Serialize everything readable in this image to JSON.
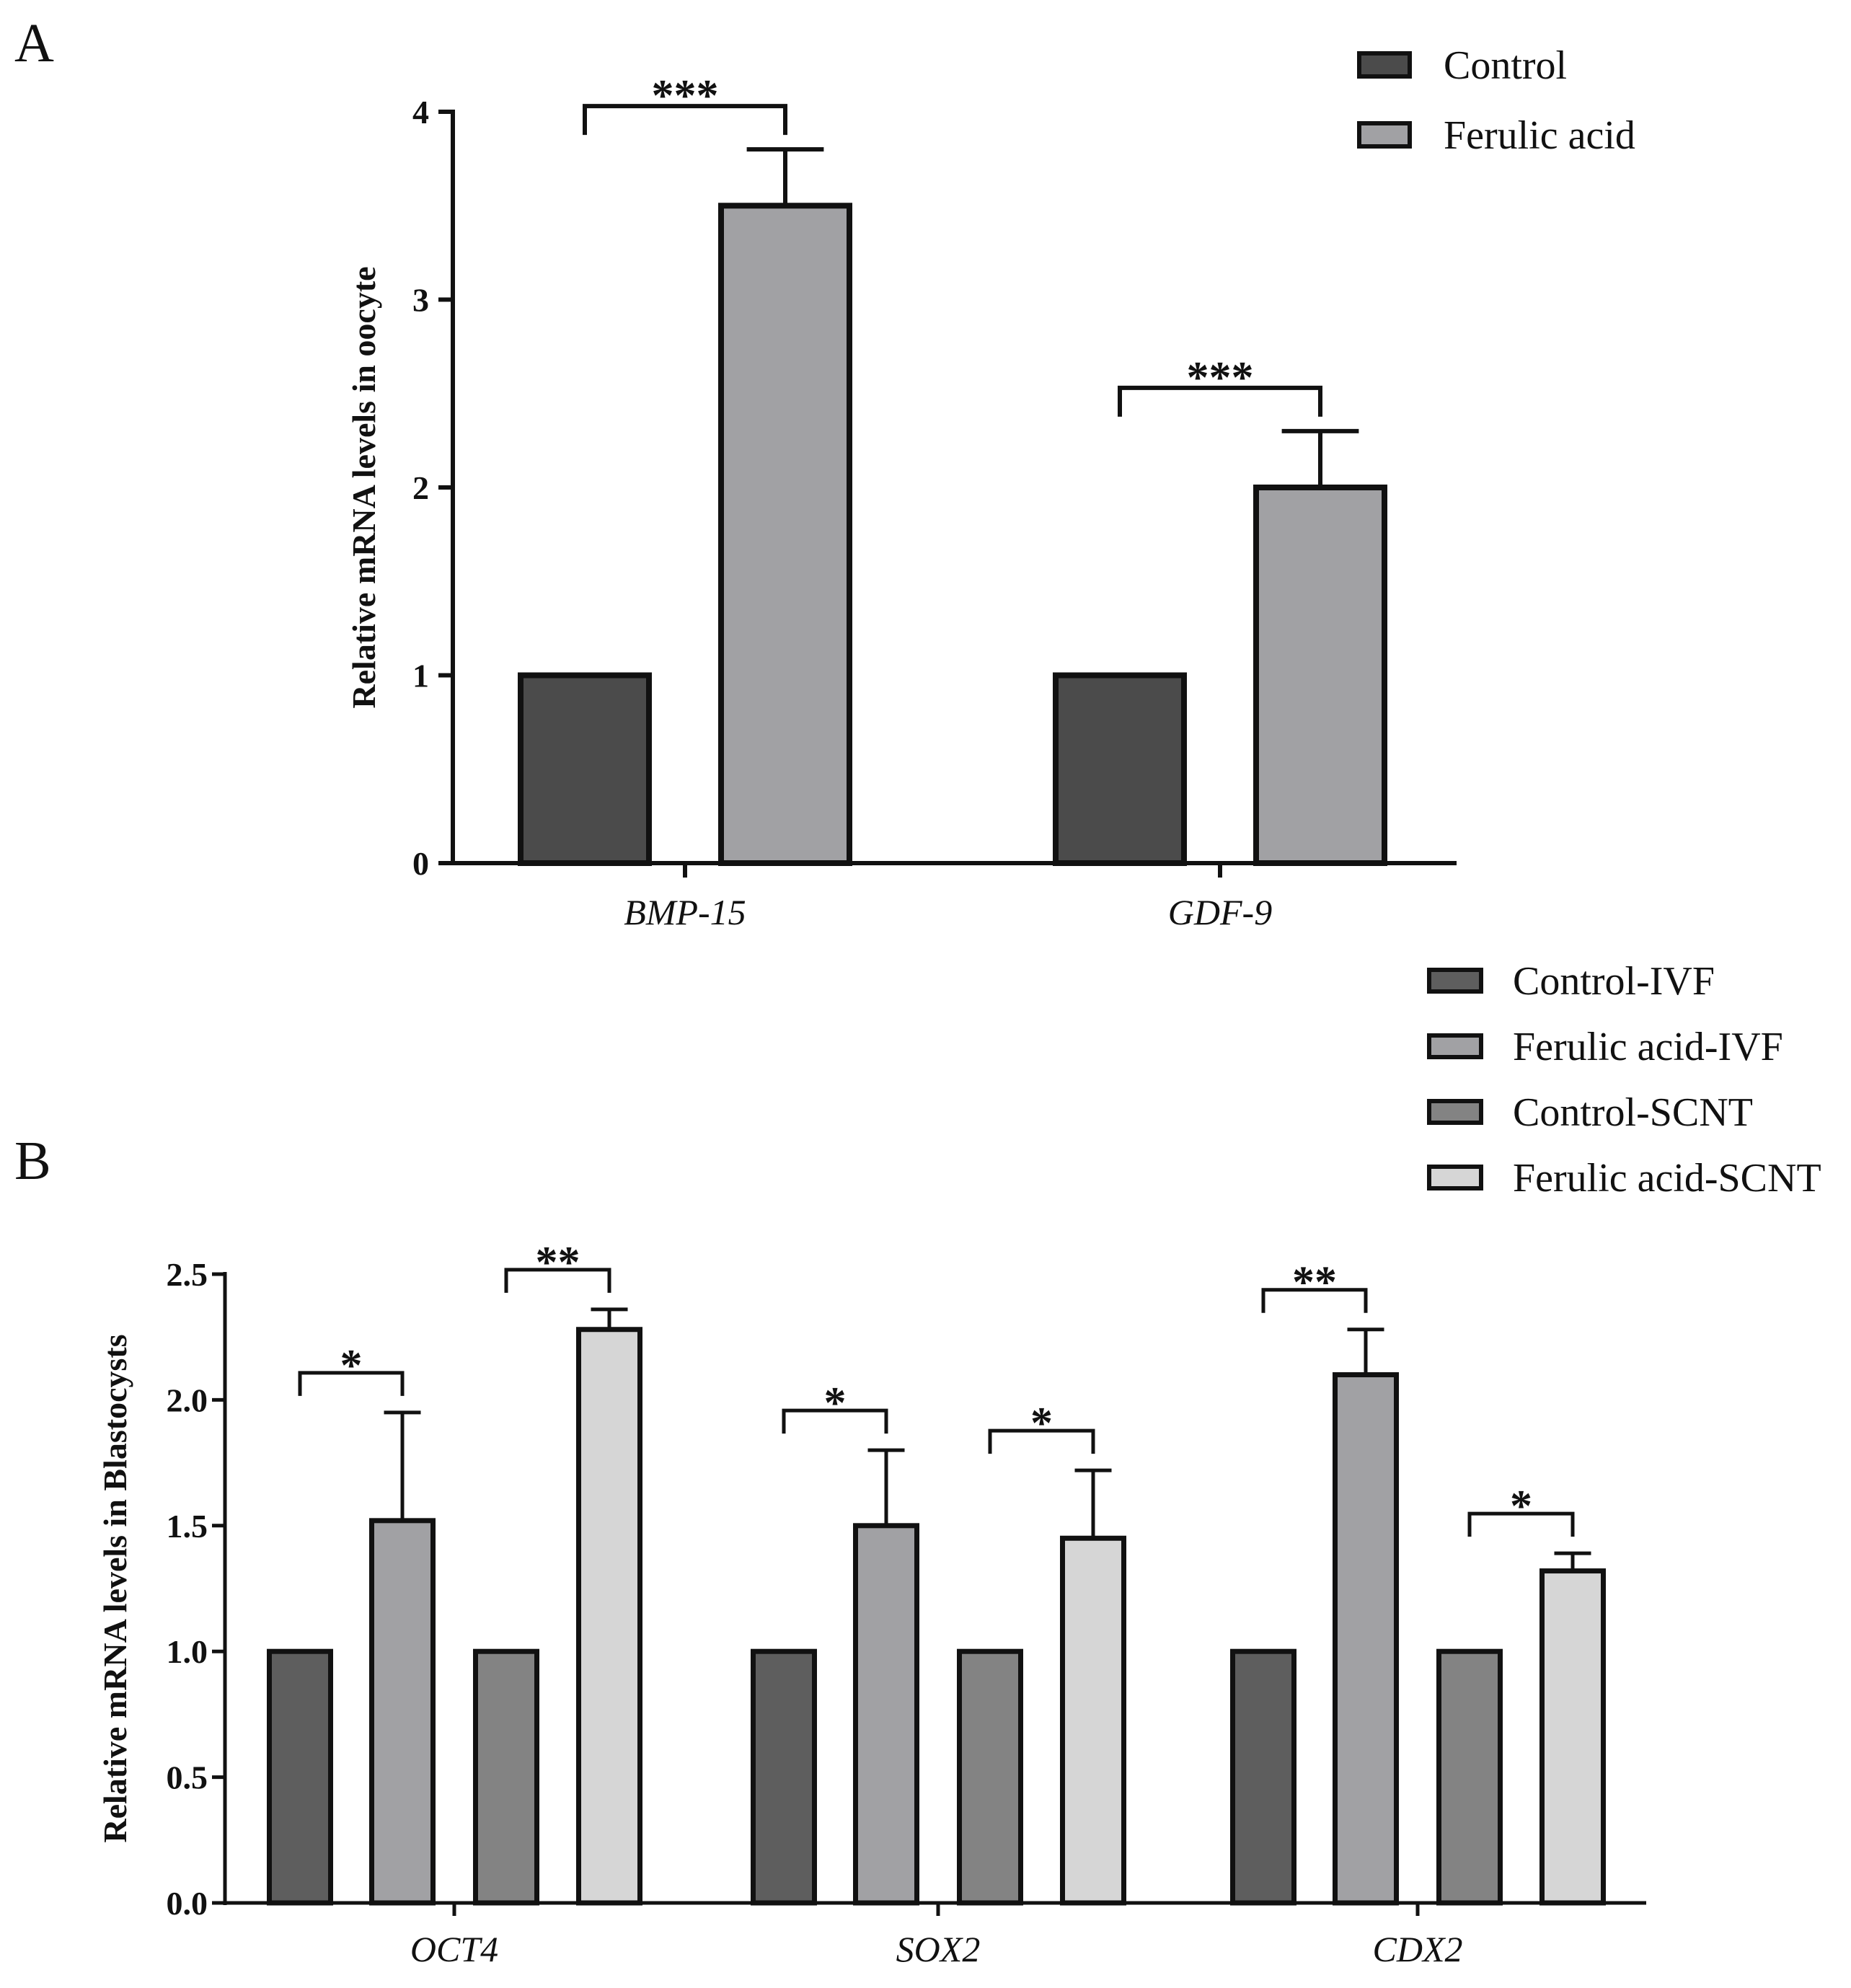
{
  "panels": {
    "A": {
      "letter": "A"
    },
    "B": {
      "letter": "B"
    }
  },
  "colors": {
    "control": "#4b4b4b",
    "ferulic": "#a1a1a4",
    "control_ivf": "#5e5e5e",
    "ferulic_ivf": "#a1a1a4",
    "control_scnt": "#838383",
    "ferulic_scnt": "#d6d6d6",
    "stroke": "#111111"
  },
  "chart_data": [
    {
      "id": "A",
      "type": "bar",
      "title": "",
      "xlabel": "",
      "ylabel": "Relative mRNA levels in oocyte",
      "ylim": [
        0,
        4
      ],
      "yticks": [
        "0",
        "1",
        "2",
        "3",
        "4"
      ],
      "categories": [
        "BMP-15",
        "GDF-9"
      ],
      "legend_position": "top-right",
      "series": [
        {
          "name": "Control",
          "values": [
            1,
            1
          ],
          "errors": [
            0,
            0
          ],
          "color": "#4b4b4b"
        },
        {
          "name": "Ferulic acid",
          "values": [
            3.5,
            2.0
          ],
          "errors": [
            0.3,
            0.3
          ],
          "color": "#a1a1a4"
        }
      ],
      "annotations": [
        {
          "category": "BMP-15",
          "from": "Control",
          "to": "Ferulic acid",
          "label": "***"
        },
        {
          "category": "GDF-9",
          "from": "Control",
          "to": "Ferulic acid",
          "label": "***"
        }
      ]
    },
    {
      "id": "B",
      "type": "bar",
      "title": "",
      "xlabel": "",
      "ylabel": "Relative mRNA levels in Blastocysts",
      "ylim": [
        0,
        2.5
      ],
      "yticks": [
        "0.0",
        "0.5",
        "1.0",
        "1.5",
        "2.0",
        "2.5"
      ],
      "categories": [
        "OCT4",
        "SOX2",
        "CDX2"
      ],
      "legend_position": "top-right",
      "series": [
        {
          "name": "Control-IVF",
          "values": [
            1,
            1,
            1
          ],
          "errors": [
            0,
            0,
            0
          ],
          "color": "#5e5e5e"
        },
        {
          "name": "Ferulic acid-IVF",
          "values": [
            1.52,
            1.5,
            2.1
          ],
          "errors": [
            0.43,
            0.3,
            0.18
          ],
          "color": "#a1a1a4"
        },
        {
          "name": "Control-SCNT",
          "values": [
            1,
            1,
            1
          ],
          "errors": [
            0,
            0,
            0
          ],
          "color": "#838383"
        },
        {
          "name": "Ferulic acid-SCNT",
          "values": [
            2.28,
            1.45,
            1.32
          ],
          "errors": [
            0.08,
            0.27,
            0.07
          ],
          "color": "#d6d6d6"
        }
      ],
      "annotations": [
        {
          "category": "OCT4",
          "from": "Control-IVF",
          "to": "Ferulic acid-IVF",
          "label": "*"
        },
        {
          "category": "OCT4",
          "from": "Control-SCNT",
          "to": "Ferulic acid-SCNT",
          "label": "**"
        },
        {
          "category": "SOX2",
          "from": "Control-IVF",
          "to": "Ferulic acid-IVF",
          "label": "*"
        },
        {
          "category": "SOX2",
          "from": "Control-SCNT",
          "to": "Ferulic acid-SCNT",
          "label": "*"
        },
        {
          "category": "CDX2",
          "from": "Control-IVF",
          "to": "Ferulic acid-IVF",
          "label": "**"
        },
        {
          "category": "CDX2",
          "from": "Control-SCNT",
          "to": "Ferulic acid-SCNT",
          "label": "*"
        }
      ]
    }
  ]
}
